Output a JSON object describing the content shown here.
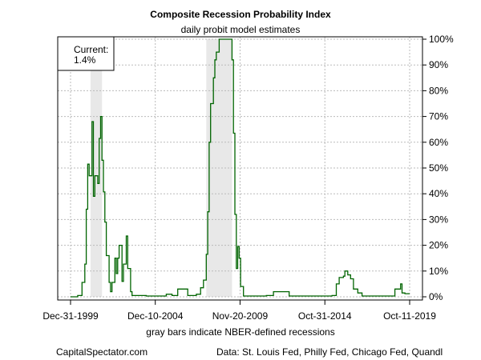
{
  "chart_data": {
    "type": "line",
    "title": "Composite Recession Probability Index",
    "subtitle": "daily probit model estimates",
    "xlabel": "gray bars indicate NBER-defined recessions",
    "ylabel": "",
    "ylim": [
      0,
      100
    ],
    "y_ticks": [
      "0%",
      "10%",
      "20%",
      "30%",
      "40%",
      "50%",
      "60%",
      "70%",
      "80%",
      "90%",
      "100%"
    ],
    "y_axis_side": "right",
    "x_ticks": [
      {
        "label": "Dec-31-1999",
        "date": "1999-12-31"
      },
      {
        "label": "Dec-10-2004",
        "date": "2004-12-10"
      },
      {
        "label": "Nov-20-2009",
        "date": "2009-11-20"
      },
      {
        "label": "Oct-31-2014",
        "date": "2014-10-31"
      },
      {
        "label": "Oct-11-2019",
        "date": "2019-10-11"
      }
    ],
    "grid": true,
    "line_color": "#006400",
    "recession_color": "#e8e8e8",
    "recessions": [
      {
        "start": "2001-03",
        "end": "2001-11"
      },
      {
        "start": "2007-12",
        "end": "2009-06"
      }
    ],
    "annotation": {
      "label": "Current:",
      "value": "1.4%",
      "placement": "top-left"
    },
    "series": [
      {
        "points": [
          [
            "2000-01",
            0
          ],
          [
            "2000-06",
            0.5
          ],
          [
            "2000-09",
            5.6
          ],
          [
            "2000-11",
            12.7
          ],
          [
            "2000-12",
            34
          ],
          [
            "2001-01",
            51.5
          ],
          [
            "2001-02",
            47
          ],
          [
            "2001-04",
            68
          ],
          [
            "2001-05",
            39
          ],
          [
            "2001-06",
            47
          ],
          [
            "2001-08",
            44
          ],
          [
            "2001-09",
            61.5
          ],
          [
            "2001-10",
            70
          ],
          [
            "2001-11",
            53
          ],
          [
            "2001-12",
            40.7
          ],
          [
            "2002-01",
            29
          ],
          [
            "2002-02",
            16
          ],
          [
            "2002-04",
            5.6
          ],
          [
            "2002-05",
            2
          ],
          [
            "2002-06",
            5.6
          ],
          [
            "2002-08",
            15
          ],
          [
            "2002-09",
            9
          ],
          [
            "2002-10",
            15
          ],
          [
            "2002-11",
            20
          ],
          [
            "2003-01",
            6
          ],
          [
            "2003-02",
            12.7
          ],
          [
            "2003-04",
            23.6
          ],
          [
            "2003-05",
            11
          ],
          [
            "2003-07",
            2
          ],
          [
            "2003-08",
            0.5
          ],
          [
            "2004-06",
            0.3
          ],
          [
            "2005-08",
            1
          ],
          [
            "2005-12",
            0.5
          ],
          [
            "2006-04",
            3
          ],
          [
            "2006-09",
            3
          ],
          [
            "2006-11",
            0.5
          ],
          [
            "2007-05",
            1
          ],
          [
            "2007-08",
            3.5
          ],
          [
            "2007-10",
            6.5
          ],
          [
            "2007-12",
            16.5
          ],
          [
            "2008-01",
            33
          ],
          [
            "2008-02",
            60
          ],
          [
            "2008-03",
            75
          ],
          [
            "2008-05",
            85
          ],
          [
            "2008-06",
            92
          ],
          [
            "2008-07",
            95
          ],
          [
            "2008-09",
            100
          ],
          [
            "2009-05",
            100
          ],
          [
            "2009-06",
            92
          ],
          [
            "2009-07",
            63.5
          ],
          [
            "2009-08",
            32
          ],
          [
            "2009-09",
            11
          ],
          [
            "2009-10",
            19.5
          ],
          [
            "2009-11",
            15
          ],
          [
            "2009-12",
            4
          ],
          [
            "2010-02",
            0.3
          ],
          [
            "2011-06",
            0.5
          ],
          [
            "2011-11",
            2
          ],
          [
            "2012-06",
            2
          ],
          [
            "2012-10",
            0.3
          ],
          [
            "2015-04",
            0.5
          ],
          [
            "2015-07",
            5
          ],
          [
            "2015-09",
            7.5
          ],
          [
            "2015-12",
            8
          ],
          [
            "2016-01",
            10
          ],
          [
            "2016-03",
            8.5
          ],
          [
            "2016-05",
            7
          ],
          [
            "2016-07",
            3
          ],
          [
            "2016-10",
            1.5
          ],
          [
            "2017-01",
            0.3
          ],
          [
            "2018-07",
            0.3
          ],
          [
            "2018-12",
            3
          ],
          [
            "2019-04",
            5
          ],
          [
            "2019-05",
            1.5
          ],
          [
            "2019-07",
            1.2
          ],
          [
            "2019-10",
            1.4
          ]
        ]
      }
    ]
  },
  "footer": {
    "source_site": "CapitalSpectator.com",
    "data_sources": "Data: St. Louis Fed, Philly Fed, Chicago Fed, Quandl"
  }
}
